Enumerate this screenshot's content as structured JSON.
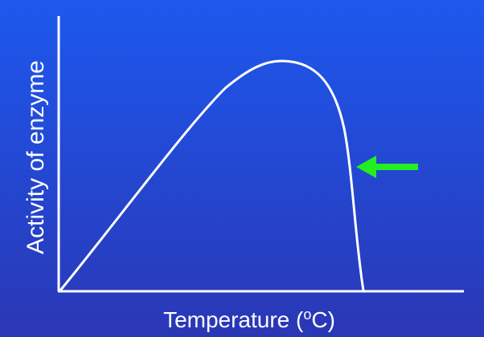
{
  "axes": {
    "y_label": "Activity of enzyme",
    "x_label": {
      "text": "Temperature (",
      "superscript": "o",
      "suffix": "C)"
    }
  }
}
